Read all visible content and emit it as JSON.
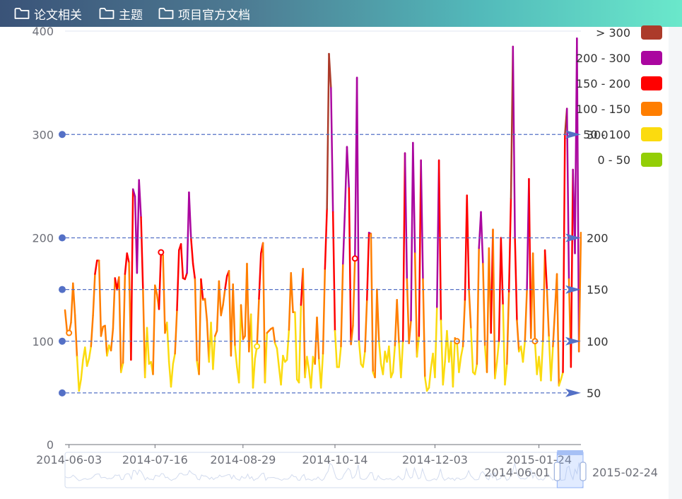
{
  "toolbar": {
    "tabs": [
      {
        "label": "论文相关",
        "icon": "folder-icon"
      },
      {
        "label": "主题",
        "icon": "folder-icon"
      },
      {
        "label": "项目官方文档",
        "icon": "folder-icon"
      }
    ]
  },
  "chart_data": {
    "type": "line",
    "x_start": "2014-06-01",
    "x_end": "2015-02-24",
    "x_tick_labels": [
      "2014-06-03",
      "2014-07-16",
      "2014-08-29",
      "2014-10-14",
      "2014-12-03",
      "2015-01-24"
    ],
    "y_ticks": [
      0,
      100,
      200,
      300,
      400
    ],
    "ylim": [
      0,
      400
    ],
    "values": [
      130,
      110,
      108,
      118,
      156,
      125,
      85,
      52,
      63,
      82,
      94,
      76,
      83,
      95,
      125,
      165,
      178,
      178,
      105,
      114,
      115,
      86,
      96,
      91,
      112,
      161,
      150,
      162,
      70,
      79,
      165,
      185,
      176,
      82,
      247,
      240,
      166,
      256,
      220,
      150,
      65,
      113,
      78,
      80,
      68,
      154,
      145,
      131,
      186,
      183,
      108,
      118,
      80,
      56,
      78,
      88,
      130,
      188,
      194,
      161,
      160,
      166,
      244,
      200,
      175,
      160,
      80,
      68,
      160,
      140,
      141,
      120,
      80,
      118,
      73,
      105,
      110,
      158,
      125,
      135,
      150,
      163,
      168,
      86,
      155,
      95,
      75,
      60,
      135,
      102,
      105,
      175,
      90,
      126,
      55,
      83,
      95,
      141,
      185,
      195,
      60,
      108,
      110,
      112,
      113,
      98,
      93,
      75,
      58,
      86,
      80,
      82,
      111,
      166,
      128,
      128,
      63,
      60,
      135,
      170,
      65,
      85,
      72,
      55,
      85,
      78,
      123,
      82,
      55,
      88,
      170,
      228,
      378,
      345,
      225,
      110,
      75,
      75,
      95,
      175,
      228,
      288,
      248,
      97,
      115,
      180,
      355,
      100,
      78,
      75,
      90,
      140,
      205,
      204,
      70,
      65,
      150,
      100,
      78,
      68,
      90,
      80,
      95,
      65,
      70,
      96,
      140,
      98,
      65,
      100,
      282,
      160,
      98,
      120,
      292,
      185,
      85,
      105,
      275,
      160,
      65,
      52,
      55,
      74,
      88,
      65,
      133,
      275,
      120,
      58,
      80,
      110,
      80,
      100,
      56,
      103,
      100,
      70,
      85,
      95,
      140,
      241,
      150,
      112,
      70,
      68,
      78,
      190,
      225,
      175,
      95,
      70,
      190,
      108,
      208,
      64,
      80,
      100,
      200,
      135,
      58,
      78,
      148,
      238,
      385,
      200,
      120,
      90,
      95,
      80,
      100,
      150,
      257,
      103,
      185,
      100,
      68,
      85,
      62,
      100,
      188,
      150,
      104,
      62,
      95,
      130,
      165,
      57,
      63,
      70,
      300,
      325,
      160,
      75,
      266,
      185,
      393,
      90,
      205
    ],
    "marks": [
      {
        "value": 300,
        "label": "300"
      },
      {
        "value": 200,
        "label": "200"
      },
      {
        "value": 150,
        "label": "150"
      },
      {
        "value": 100,
        "label": "100"
      },
      {
        "value": 50,
        "label": "50"
      }
    ],
    "visual_map": [
      {
        "label": "> 300",
        "min": 300,
        "max": 1000,
        "color": "#ac3b2a"
      },
      {
        "label": "200 - 300",
        "min": 200,
        "max": 300,
        "color": "#aa069f"
      },
      {
        "label": "150 - 200",
        "min": 150,
        "max": 200,
        "color": "#ff0000"
      },
      {
        "label": "100 - 150",
        "min": 100,
        "max": 150,
        "color": "#ff7e00"
      },
      {
        "label": "50 - 100",
        "min": 50,
        "max": 100,
        "color": "#fbdb0f"
      },
      {
        "label": "0 - 50",
        "min": 0,
        "max": 50,
        "color": "#93ce07"
      }
    ],
    "data_zoom": {
      "start_label": "2014-06-01",
      "end_label": "2015-02-24",
      "start_fraction": 0.95,
      "end_fraction": 1.0
    },
    "grid": false,
    "legend_position": "top-right"
  }
}
